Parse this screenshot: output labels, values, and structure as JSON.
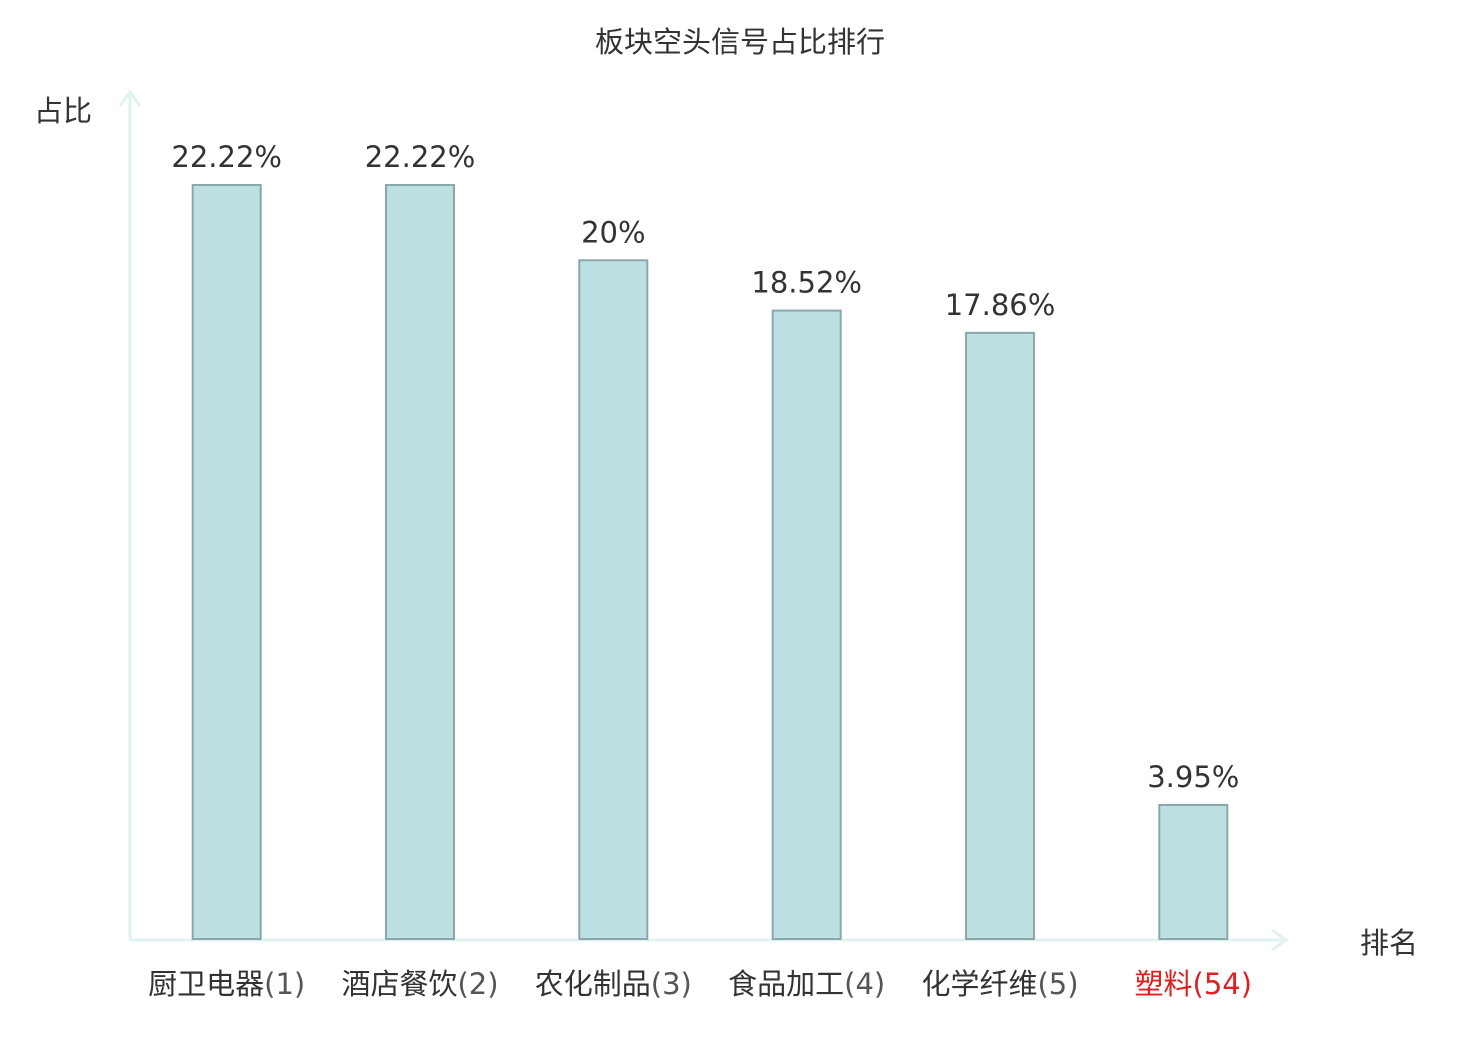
{
  "chart_data": {
    "type": "bar",
    "title": "板块空头信号占比排行",
    "ylabel": "占比",
    "xlabel": "排名",
    "categories": [
      {
        "name": "厨卫电器",
        "rank": "(1)",
        "highlight": false
      },
      {
        "name": "酒店餐饮",
        "rank": "(2)",
        "highlight": false
      },
      {
        "name": "农化制品",
        "rank": "(3)",
        "highlight": false
      },
      {
        "name": "食品加工",
        "rank": "(4)",
        "highlight": false
      },
      {
        "name": "化学纤维",
        "rank": "(5)",
        "highlight": false
      },
      {
        "name": "塑料",
        "rank": "(54)",
        "highlight": true
      }
    ],
    "values": [
      22.22,
      22.22,
      20,
      18.52,
      17.86,
      3.95
    ],
    "value_labels": [
      "22.22%",
      "22.22%",
      "20%",
      "18.52%",
      "17.86%",
      "3.95%"
    ],
    "ylim": [
      0,
      25
    ],
    "grid": false,
    "legend": "none",
    "colors": {
      "bar_fill": "#bde0e3",
      "bar_stroke": "#8aa7ab",
      "axis": "#e0f2f1",
      "text": "#333333",
      "highlight": "#e02020"
    }
  }
}
